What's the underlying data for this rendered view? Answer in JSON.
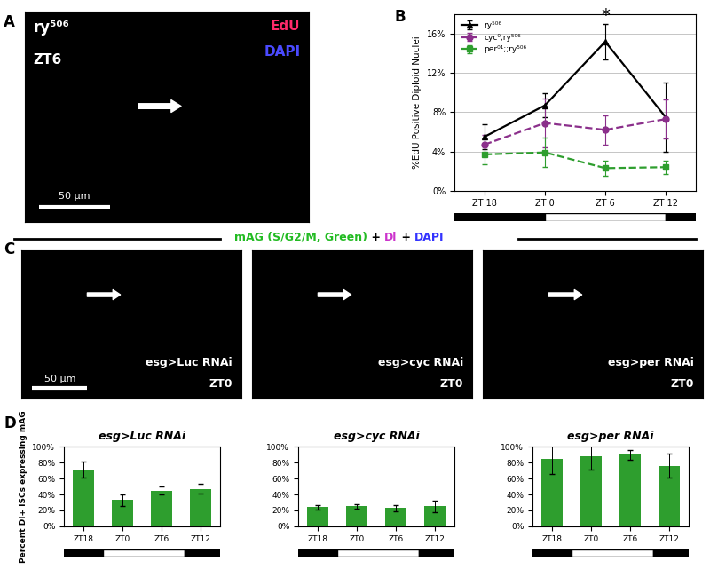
{
  "panel_labels": [
    "A",
    "B",
    "C",
    "D"
  ],
  "image_a": {
    "texts": [
      "ry⁵⁰⁶",
      "ZT6"
    ],
    "channels": [
      {
        "text": "EdU",
        "color": "#ff2a6a"
      },
      {
        "text": "DAPI",
        "color": "#4a4aff"
      }
    ],
    "scale_bar": "50 μm"
  },
  "image_row_title": [
    {
      "text": "mAG (S/G2/M, Green)",
      "color": "#22bb22"
    },
    {
      "text": " + ",
      "color": "#000000"
    },
    {
      "text": "Dl",
      "color": "#cc33cc"
    },
    {
      "text": " + ",
      "color": "#000000"
    },
    {
      "text": "DAPI",
      "color": "#3333ff"
    }
  ],
  "image_row": [
    {
      "texts": [
        "esg>Luc RNAi",
        "ZT0"
      ],
      "scale_bar": "50 μm"
    },
    {
      "texts": [
        "esg>cyc RNAi",
        "ZT0"
      ]
    },
    {
      "texts": [
        "esg>per RNAi",
        "ZT0"
      ]
    }
  ],
  "chart_data": [
    {
      "type": "line",
      "categories": [
        "ZT 18",
        "ZT 0",
        "ZT 6",
        "ZT 12"
      ],
      "y_label": "%EdU Positive Diploid Nuclei",
      "ylim": [
        0,
        18
      ],
      "yticks": [
        {
          "value": 0,
          "label": "0%"
        },
        {
          "value": 4,
          "label": "4%"
        },
        {
          "value": 8,
          "label": "8%"
        },
        {
          "value": 12,
          "label": "12%"
        },
        {
          "value": 16,
          "label": "16%"
        }
      ],
      "grid": true,
      "legend": "upper left",
      "series": [
        {
          "name": "ry⁵⁰⁶",
          "color": "#000000",
          "marker": "triangle",
          "line_style": "solid",
          "values": [
            5.5,
            8.7,
            15.2,
            7.5
          ],
          "errors": [
            1.3,
            1.2,
            1.8,
            3.5
          ]
        },
        {
          "name": "cyc⁰,ry⁵⁰⁶",
          "color": "#8b2f8b",
          "marker": "circle",
          "line_style": "dashed",
          "values": [
            4.7,
            6.9,
            6.2,
            7.3
          ],
          "errors": [
            1.0,
            2.5,
            1.5,
            2.0
          ]
        },
        {
          "name": "per⁰¹;;ry⁵⁰⁶",
          "color": "#2e9e2e",
          "marker": "square",
          "line_style": "dashed",
          "values": [
            3.7,
            3.9,
            2.3,
            2.4
          ],
          "errors": [
            1.0,
            1.5,
            0.8,
            0.7
          ]
        }
      ],
      "annotations": [
        {
          "text": "*",
          "category": "ZT 6"
        }
      ]
    },
    {
      "type": "bar",
      "title": "esg>Luc RNAi",
      "categories": [
        "ZT18",
        "ZT0",
        "ZT6",
        "ZT12"
      ],
      "values": [
        71,
        33,
        45,
        47
      ],
      "errors": [
        10,
        7,
        5,
        6
      ],
      "color": "#2e9e2e",
      "y_label": "Percent Dl+ ISCs expressing mAG",
      "ylim": [
        0,
        100
      ],
      "yticks": [
        {
          "value": 0,
          "label": "0%"
        },
        {
          "value": 20,
          "label": "20%"
        },
        {
          "value": 40,
          "label": "40%"
        },
        {
          "value": 60,
          "label": "60%"
        },
        {
          "value": 80,
          "label": "80%"
        },
        {
          "value": 100,
          "label": "100%"
        }
      ]
    },
    {
      "type": "bar",
      "title": "esg>cyc RNAi",
      "categories": [
        "ZT18",
        "ZT0",
        "ZT6",
        "ZT12"
      ],
      "values": [
        24,
        25,
        23,
        25
      ],
      "errors": [
        3,
        3,
        4,
        7
      ],
      "color": "#2e9e2e",
      "ylim": [
        0,
        100
      ],
      "yticks": [
        {
          "value": 0,
          "label": "0%"
        },
        {
          "value": 20,
          "label": "20%"
        },
        {
          "value": 40,
          "label": "40%"
        },
        {
          "value": 60,
          "label": "60%"
        },
        {
          "value": 80,
          "label": "80%"
        },
        {
          "value": 100,
          "label": "100%"
        }
      ]
    },
    {
      "type": "bar",
      "title": "esg>per RNAi",
      "categories": [
        "ZT18",
        "ZT0",
        "ZT6",
        "ZT12"
      ],
      "values": [
        85,
        88,
        90,
        76
      ],
      "errors": [
        19,
        17,
        6,
        15
      ],
      "color": "#2e9e2e",
      "ylim": [
        0,
        100
      ],
      "yticks": [
        {
          "value": 0,
          "label": "0%"
        },
        {
          "value": 20,
          "label": "20%"
        },
        {
          "value": 40,
          "label": "40%"
        },
        {
          "value": 60,
          "label": "60%"
        },
        {
          "value": 80,
          "label": "80%"
        },
        {
          "value": 100,
          "label": "100%"
        }
      ]
    }
  ]
}
